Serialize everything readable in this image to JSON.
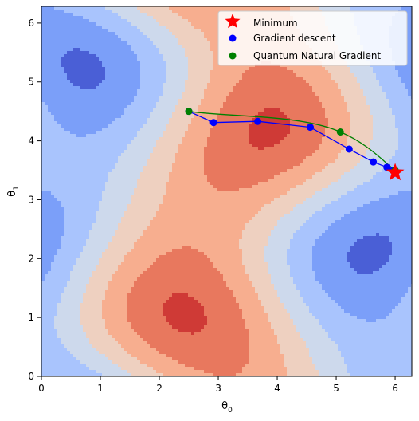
{
  "chart_data": {
    "type": "contour",
    "xlabel_main": "θ",
    "xlabel_sub": "0",
    "ylabel_main": "θ",
    "ylabel_sub": "1",
    "xlim": [
      0,
      6.283
    ],
    "ylim": [
      0,
      6.283
    ],
    "xticks": [
      0,
      1,
      2,
      3,
      4,
      5,
      6
    ],
    "yticks": [
      0,
      1,
      2,
      3,
      4,
      5,
      6
    ],
    "xtick_labels": [
      "0",
      "1",
      "2",
      "3",
      "4",
      "5",
      "6"
    ],
    "ytick_labels": [
      "0",
      "1",
      "2",
      "3",
      "4",
      "5",
      "6"
    ],
    "levels": [
      -1.0,
      -0.75,
      -0.5,
      -0.25,
      0.0,
      0.25,
      0.5,
      0.75,
      1.0
    ],
    "colors": [
      "#4a5fd6",
      "#7b9ff9",
      "#a9c4fd",
      "#cdd9ec",
      "#eed0c0",
      "#f7ae8f",
      "#e8785e",
      "#cf3a36"
    ],
    "legend_position": "top-right",
    "minimum": {
      "label": "Minimum",
      "x": 6.0,
      "y": 3.46,
      "color": "#ff0000"
    },
    "series": [
      {
        "name": "Gradient descent",
        "color": "#0000ff",
        "x": [
          2.5,
          2.92,
          3.67,
          4.56,
          5.22,
          5.63,
          5.86,
          5.96,
          6.0
        ],
        "y": [
          4.5,
          4.31,
          4.33,
          4.23,
          3.86,
          3.64,
          3.55,
          3.5,
          3.47
        ]
      },
      {
        "name": "Quantum Natural Gradient",
        "color": "#008000",
        "x": [
          2.5,
          5.07,
          6.0
        ],
        "y": [
          4.5,
          4.15,
          3.5
        ]
      }
    ]
  }
}
